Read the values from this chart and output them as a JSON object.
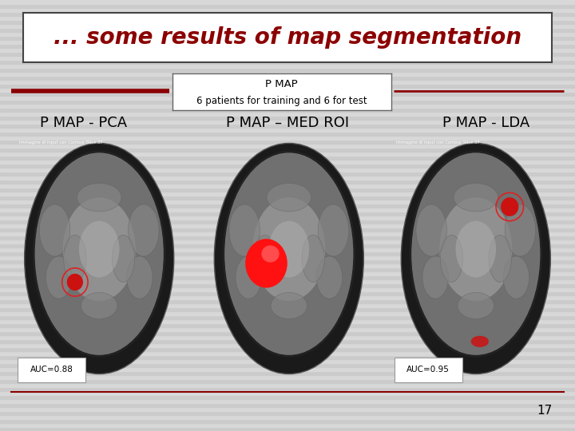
{
  "title": "... some results of map segmentation",
  "title_color": "#8B0000",
  "title_fontsize": 20,
  "bg_color": "#D5D5D5",
  "center_box_title": "P MAP",
  "center_box_subtitle": "6 patients for training and 6 for test",
  "col_labels": [
    "P MAP - PCA",
    "P MAP – MED ROI",
    "P MAP - LDA"
  ],
  "col_label_fontsize": 13,
  "auc_labels": [
    "AUC=0.88",
    null,
    "AUC=0.95"
  ],
  "page_number": "17",
  "red_line_color": "#8B0000"
}
